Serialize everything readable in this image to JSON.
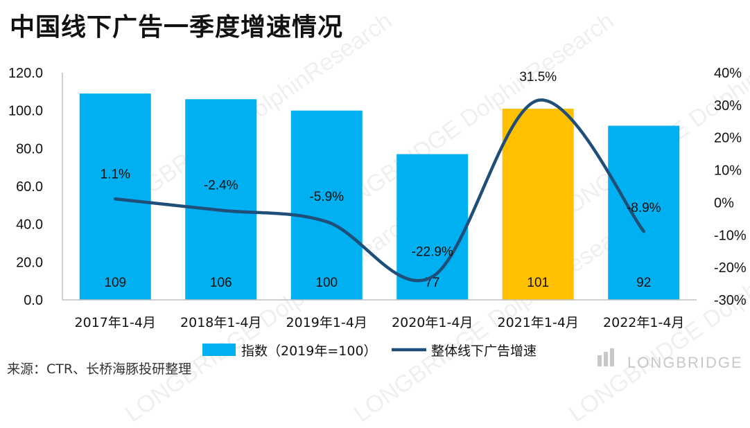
{
  "title": "中国线下广告一季度增速情况",
  "source": "来源：CTR、长桥海豚投研整理",
  "watermark": "LONGBRIDGE DolphinResearch",
  "brand": "LONGBRIDGE",
  "chart_data": {
    "type": "bar",
    "categories": [
      "2017年1-4月",
      "2018年1-4月",
      "2019年1-4月",
      "2020年1-4月",
      "2021年1-4月",
      "2022年1-4月"
    ],
    "series": [
      {
        "name": "指数（2019年=100）",
        "type": "bar",
        "axis": "left",
        "values": [
          109,
          106,
          100,
          77,
          101,
          92
        ],
        "labels": [
          "109",
          "106",
          "100",
          "77",
          "101",
          "92"
        ],
        "color": "#00B0F0",
        "highlight_index": 4,
        "highlight_color": "#FFC000"
      },
      {
        "name": "整体线下广告增速",
        "type": "line",
        "axis": "right",
        "values": [
          1.1,
          -2.4,
          -5.9,
          -22.9,
          31.5,
          -8.9
        ],
        "labels": [
          "1.1%",
          "-2.4%",
          "-5.9%",
          "-22.9%",
          "31.5%",
          "-8.9%"
        ],
        "color": "#1F4E79"
      }
    ],
    "y_left": {
      "min": 0,
      "max": 120,
      "ticks": [
        "0.0",
        "20.0",
        "40.0",
        "60.0",
        "80.0",
        "100.0",
        "120.0"
      ]
    },
    "y_right": {
      "min": -30,
      "max": 40,
      "ticks": [
        "-30%",
        "-20%",
        "-10%",
        "0%",
        "10%",
        "20%",
        "30%",
        "40%"
      ]
    },
    "legend": {
      "position": "bottom"
    },
    "grid": false
  }
}
